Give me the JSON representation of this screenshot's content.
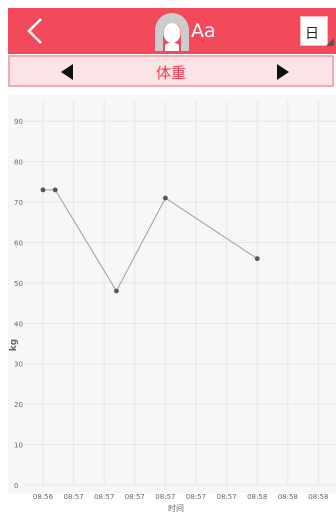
{
  "header": {
    "back_icon": "chevron-left-icon",
    "avatar_icon": "user-avatar-icon",
    "username": "Aa",
    "period_selector": "日",
    "bar_color": "#f24a5b"
  },
  "metric_bar": {
    "title": "体重",
    "prev_icon": "triangle-left-icon",
    "next_icon": "triangle-right-icon",
    "title_color": "#ef3b4e"
  },
  "chart_data": {
    "type": "line",
    "ylabel": "kg",
    "xlabel": "时间",
    "ylim": [
      0,
      95
    ],
    "yticks": [
      0,
      10,
      20,
      30,
      40,
      50,
      60,
      70,
      80,
      90
    ],
    "xticks": [
      "08:56",
      "08:57",
      "08:57",
      "08:57",
      "08:57",
      "08:57",
      "08:57",
      "08:58",
      "08:58",
      "08:58"
    ],
    "x": [
      0,
      0.4,
      2.4,
      4,
      7
    ],
    "values": [
      73,
      73,
      48,
      71,
      56
    ],
    "grid": true,
    "line_color": "#9e9e9e",
    "point_color": "#555555"
  }
}
